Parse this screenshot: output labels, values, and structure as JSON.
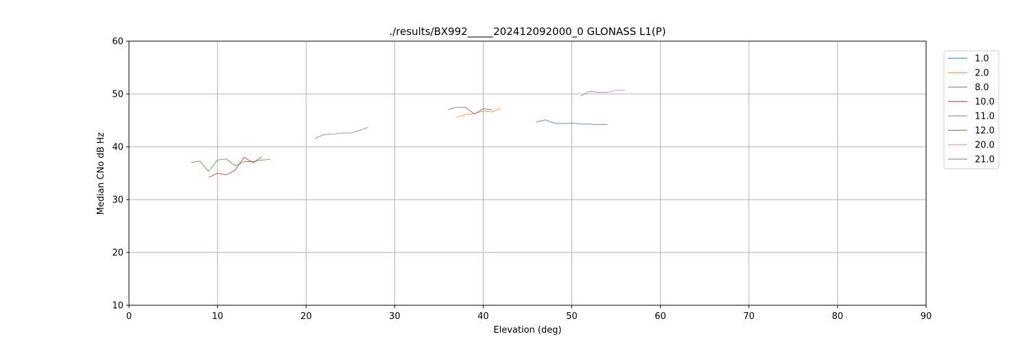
{
  "chart_data": {
    "type": "line",
    "title": "./results/BX992_____202412092000_0 GLONASS L1(P)",
    "xlabel": "Elevation (deg)",
    "ylabel": "Median CNo dB Hz",
    "xlim": [
      0,
      90
    ],
    "ylim": [
      10,
      60
    ],
    "xticks": [
      "0",
      "10",
      "20",
      "30",
      "40",
      "50",
      "60",
      "70",
      "80",
      "90"
    ],
    "yticks": [
      "10",
      "20",
      "30",
      "40",
      "50",
      "60"
    ],
    "grid": true,
    "legend_position": "outside-right-top",
    "series": [
      {
        "name": "1.0",
        "color": "#1f77b4",
        "x": [
          46,
          47,
          48,
          49,
          50,
          51,
          52,
          53,
          54
        ],
        "y": [
          44.7,
          45.1,
          44.5,
          44.4,
          44.5,
          44.3,
          44.3,
          44.2,
          44.2
        ]
      },
      {
        "name": "2.0",
        "color": "#ff7f0e",
        "x": [
          37,
          38,
          39,
          40,
          41,
          42
        ],
        "y": [
          45.6,
          46.1,
          46.3,
          46.8,
          46.6,
          47.3
        ]
      },
      {
        "name": "8.0",
        "color": "#2ca02c",
        "x": [
          7,
          8,
          9,
          10,
          11,
          12,
          13,
          14,
          15,
          16
        ],
        "y": [
          37.0,
          37.3,
          35.3,
          37.5,
          37.7,
          36.4,
          37.2,
          37.2,
          37.5,
          37.6
        ]
      },
      {
        "name": "10.0",
        "color": "#d62728",
        "x": [
          9,
          10,
          11,
          12,
          13,
          14,
          15
        ],
        "y": [
          34.2,
          35.0,
          34.7,
          35.6,
          38.0,
          37.0,
          38.1
        ]
      },
      {
        "name": "11.0",
        "color": "#9467bd",
        "x": [
          51,
          52,
          53,
          54
        ],
        "y": [
          49.6,
          50.5,
          50.3,
          50.3
        ]
      },
      {
        "name": "12.0",
        "color": "#8c564b",
        "x": [
          36,
          37,
          38,
          39,
          40,
          41
        ],
        "y": [
          47.0,
          47.5,
          47.5,
          46.2,
          47.2,
          47.0
        ]
      },
      {
        "name": "20.0",
        "color": "#e377c2",
        "x": [
          54,
          55,
          56
        ],
        "y": [
          50.3,
          50.7,
          50.7
        ]
      },
      {
        "name": "21.0",
        "color": "#7f7f7f",
        "x": [
          21,
          22,
          23,
          24,
          25,
          26,
          27
        ],
        "y": [
          41.6,
          42.3,
          42.4,
          42.6,
          42.6,
          43.1,
          43.7
        ]
      }
    ]
  }
}
